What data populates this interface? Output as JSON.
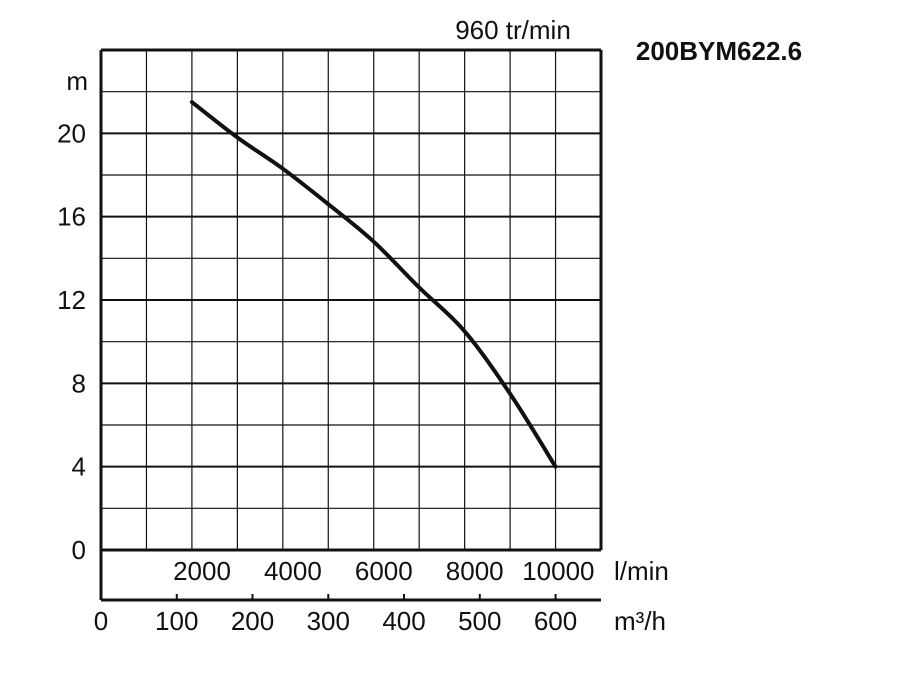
{
  "chart_data": {
    "type": "line",
    "title": "960 tr/min",
    "model": "200BYM622.6",
    "ylabel": "m",
    "ylim": [
      0,
      24
    ],
    "y_ticks": [
      "0",
      "4",
      "8",
      "12",
      "16",
      "20"
    ],
    "x_primary": {
      "unit": "l/min",
      "range": [
        0,
        11000
      ],
      "ticks": [
        "2000",
        "4000",
        "6000",
        "8000",
        "10000"
      ],
      "tick_values": [
        2000,
        4000,
        6000,
        8000,
        10000
      ]
    },
    "x_secondary": {
      "unit": "m³/h",
      "range": [
        0,
        660
      ],
      "ticks": [
        "0",
        "100",
        "200",
        "300",
        "400",
        "500",
        "600"
      ],
      "tick_values": [
        0,
        100,
        200,
        300,
        400,
        500,
        600
      ]
    },
    "grid": true,
    "series": [
      {
        "x": [
          2000,
          3000,
          4000,
          5000,
          6000,
          7000,
          8000,
          9000,
          10000
        ],
        "y": [
          21.5,
          19.8,
          18.3,
          16.6,
          14.8,
          12.6,
          10.5,
          7.5,
          4.0
        ]
      }
    ]
  }
}
